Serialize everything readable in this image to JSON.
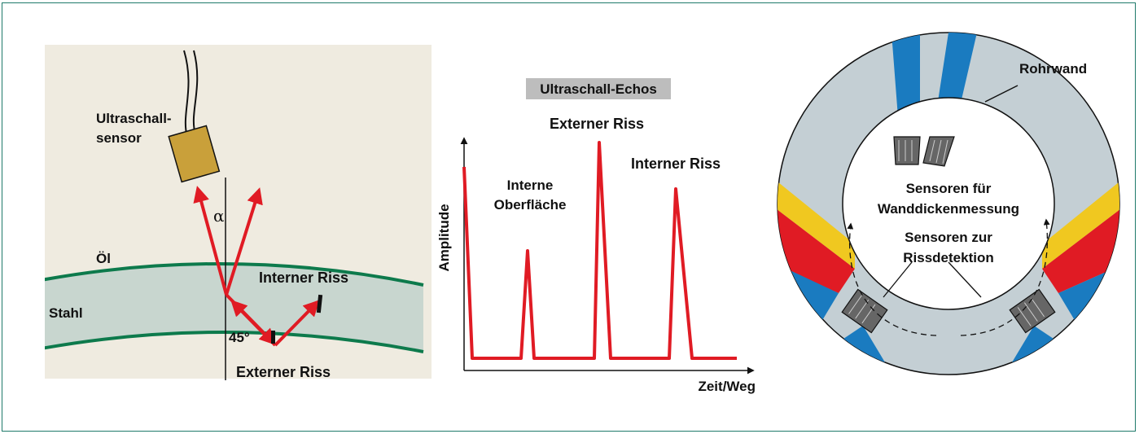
{
  "left_panel": {
    "sensor_label_line1": "Ultraschall-",
    "sensor_label_line2": "sensor",
    "angle_alpha": "α",
    "oil_label": "Öl",
    "steel_label": "Stahl",
    "internal_crack_label": "Interner Riss",
    "angle_45": "45°",
    "external_crack_label": "Externer Riss"
  },
  "middle_panel": {
    "title": "Ultraschall-Echos",
    "y_axis_label": "Amplitude",
    "x_axis_label": "Zeit/Weg",
    "peak1_line1": "Interne",
    "peak1_line2": "Oberfläche",
    "peak2_label": "Externer Riss",
    "peak3_label": "Interner Riss"
  },
  "right_panel": {
    "pipe_wall_label": "Rohrwand",
    "thickness_sensors_line1": "Sensoren für",
    "thickness_sensors_line2": "Wanddickenmessung",
    "crack_sensors_line1": "Sensoren zur",
    "crack_sensors_line2": "Rissdetektion"
  },
  "colors": {
    "border": "#1f7a6a",
    "oil_bg": "#efebe0",
    "steel_band": "#c8d6cf",
    "steel_edge": "#0d7a4c",
    "beam_red": "#e01b24",
    "sensor_gold": "#c9a03a",
    "pipe_wall": "#c4cfd4",
    "blue_beam": "#1a7bc0",
    "yellow_beam": "#f0c820",
    "title_box": "#bdbdbd"
  }
}
